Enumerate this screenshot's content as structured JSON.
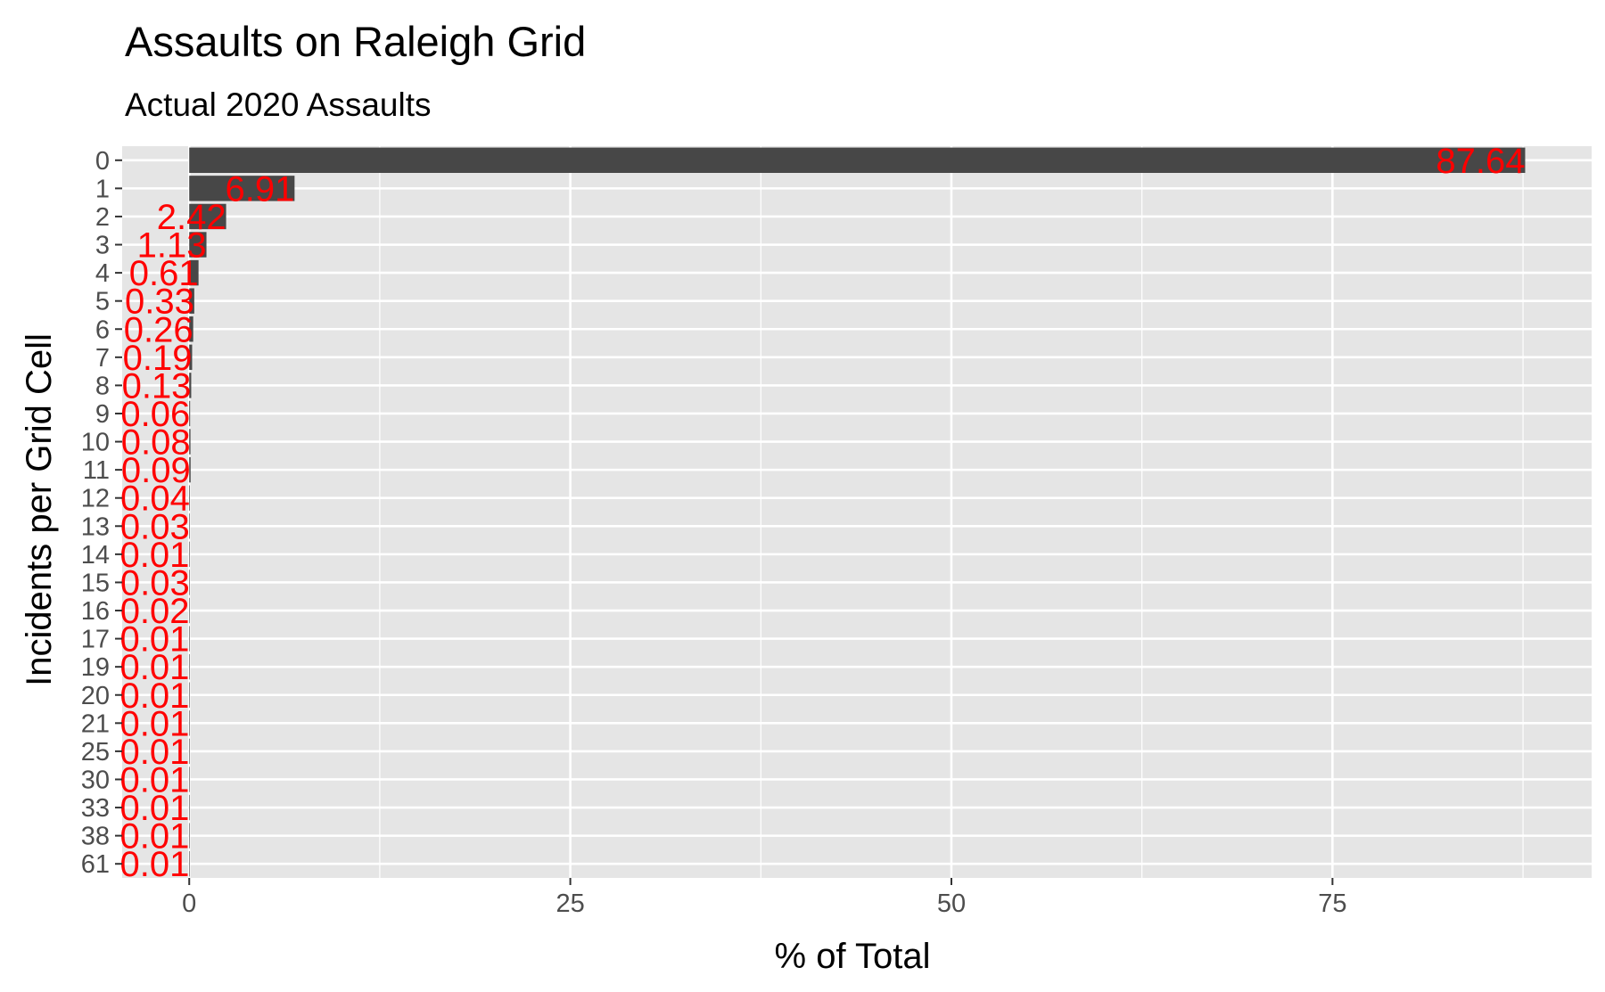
{
  "chart_data": {
    "type": "bar",
    "orientation": "horizontal",
    "title": "Assaults on Raleigh Grid",
    "subtitle": "Actual 2020 Assaults",
    "xlabel": "% of Total",
    "ylabel": "Incidents per Grid Cell",
    "categories": [
      "0",
      "1",
      "2",
      "3",
      "4",
      "5",
      "6",
      "7",
      "8",
      "9",
      "10",
      "11",
      "12",
      "13",
      "14",
      "15",
      "16",
      "17",
      "19",
      "20",
      "21",
      "25",
      "30",
      "33",
      "38",
      "61"
    ],
    "values": [
      87.64,
      6.91,
      2.42,
      1.13,
      0.61,
      0.33,
      0.26,
      0.19,
      0.13,
      0.06,
      0.08,
      0.09,
      0.04,
      0.03,
      0.01,
      0.03,
      0.02,
      0.01,
      0.01,
      0.01,
      0.01,
      0.01,
      0.01,
      0.01,
      0.01,
      0.01
    ],
    "labels": [
      "87.64",
      "6.91",
      "2.42",
      "1.13",
      "0.61",
      "0.33",
      "0.26",
      "0.19",
      "0.13",
      "0.06",
      "0.08",
      "0.09",
      "0.04",
      "0.03",
      "0.01",
      "0.03",
      "0.02",
      "0.01",
      "0.01",
      "0.01",
      "0.01",
      "0.01",
      "0.01",
      "0.01",
      "0.01",
      "0.01"
    ],
    "xlim": [
      -4.4,
      92
    ],
    "xticks": [
      0,
      25,
      50,
      75
    ],
    "xtick_labels": [
      "0",
      "25",
      "50",
      "75"
    ],
    "grid": true,
    "colors": {
      "bar": "#474747",
      "panel": "#e5e5e5",
      "grid": "#ffffff",
      "label": "#ff0000",
      "tick_text": "#4d4d4d",
      "tick_mark": "#333333"
    }
  }
}
